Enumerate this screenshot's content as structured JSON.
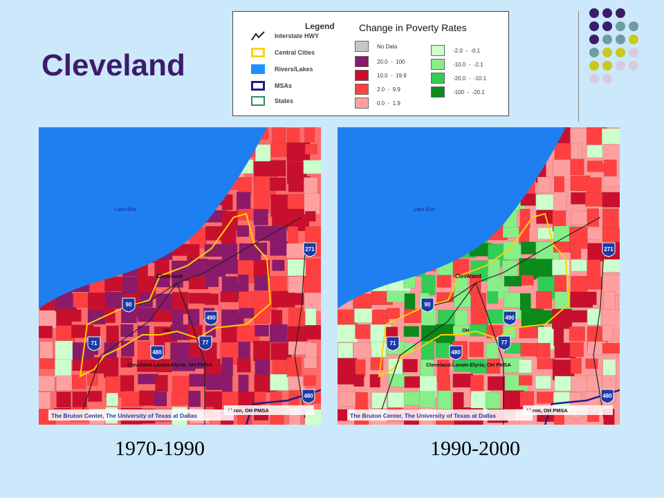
{
  "title": "Cleveland",
  "legend": {
    "title": "Legend",
    "subtitle": "Change in Poverty Rates",
    "layers": [
      {
        "label": "Interstate HWY",
        "icon": "highway-line-icon"
      },
      {
        "label": "Central Cities",
        "color": "#ffd200"
      },
      {
        "label": "Rivers/Lakes",
        "color": "#1e90ff"
      },
      {
        "label": "MSAs",
        "color": "#1b1b8c"
      },
      {
        "label": "States",
        "color": "#2e8b57"
      }
    ],
    "increase": [
      {
        "label": "No Data",
        "color": "#c8c8c8"
      },
      {
        "label": "20.0  -  100",
        "color": "#8b1a6b"
      },
      {
        "label": "10.0  -  19.9",
        "color": "#c8102e"
      },
      {
        "label": "2.0  -  9.9",
        "color": "#ff4040"
      },
      {
        "label": "0.0  -  1.9",
        "color": "#ffa0a0"
      }
    ],
    "decrease": [
      {
        "label": "-2.0  -  -0.1",
        "color": "#ccffcc"
      },
      {
        "label": "-10.0  -  -2.1",
        "color": "#88ee88"
      },
      {
        "label": "-20.0  -  -10.1",
        "color": "#33cc55"
      },
      {
        "label": "-100  -  -20.1",
        "color": "#0a8a1a"
      }
    ]
  },
  "maps": [
    {
      "period": "1970-1990",
      "lake": "Lake Erie",
      "city": "Cleveland",
      "credit": "The Bruton Center, The University of Texas at Dallas",
      "pmsa": "Cleveland-Lorain-Elyria, OH PMSA",
      "akron": "Akron, OH PMSA",
      "state": "OH",
      "highways": [
        "271",
        "90",
        "490",
        "71",
        "77",
        "480",
        "480"
      ]
    },
    {
      "period": "1990-2000",
      "lake": "Lake Erie",
      "city": "Cleveland",
      "credit": "The Bruton Center, The University of Texas at Dallas",
      "pmsa": "Cleveland-Lorain-Elyria, OH PMSA",
      "akron": "Akron, OH PMSA",
      "state": "OH",
      "highways": [
        "271",
        "90",
        "490",
        "71",
        "77",
        "480",
        "480"
      ]
    }
  ],
  "colors": {
    "background": "#cce8fb",
    "title": "#3b1c6b",
    "lake": "#1e7ff0",
    "dots": [
      "#3b1c6b",
      "#6e9ca0",
      "#c8c81e",
      "#d8cce0"
    ]
  }
}
